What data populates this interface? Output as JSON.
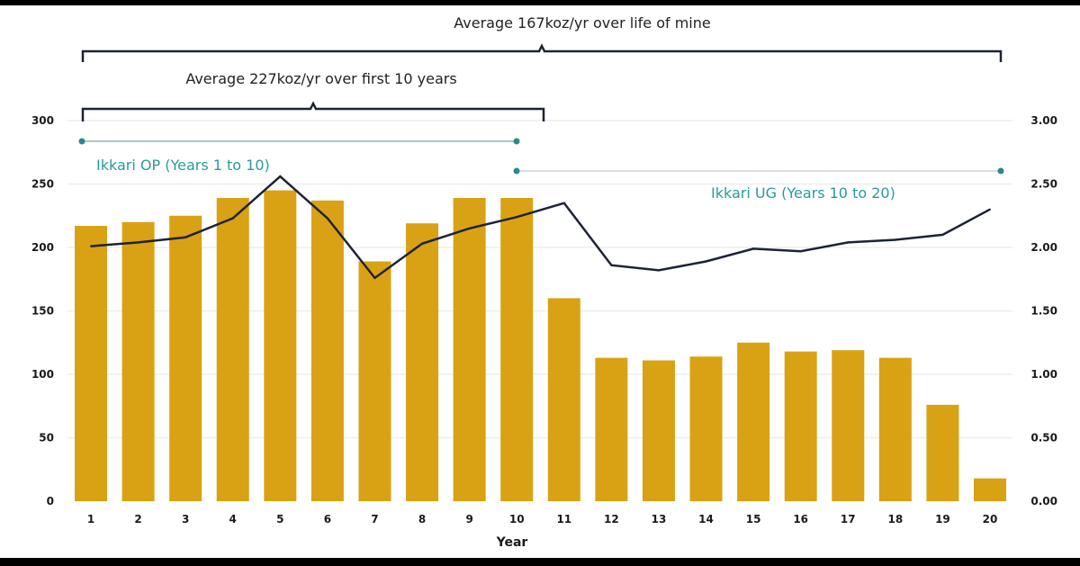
{
  "chart_data": {
    "type": "bar+line",
    "xlabel": "Year",
    "categories": [
      "1",
      "2",
      "3",
      "4",
      "5",
      "6",
      "7",
      "8",
      "9",
      "10",
      "11",
      "12",
      "13",
      "14",
      "15",
      "16",
      "17",
      "18",
      "19",
      "20"
    ],
    "left_axis": {
      "ylim": [
        0,
        300
      ],
      "ticks": [
        "0",
        "50",
        "100",
        "150",
        "200",
        "250",
        "300"
      ]
    },
    "right_axis": {
      "ylim": [
        0,
        3.0
      ],
      "ticks": [
        "0.00",
        "0.50",
        "1.00",
        "1.50",
        "2.00",
        "2.50",
        "3.00"
      ]
    },
    "series": [
      {
        "type": "bar",
        "axis": "left",
        "color": "#D9A214",
        "values": [
          217,
          220,
          225,
          239,
          245,
          237,
          189,
          219,
          239,
          239,
          160,
          113,
          111,
          114,
          125,
          118,
          119,
          113,
          76,
          18
        ]
      },
      {
        "type": "line",
        "axis": "right",
        "color": "#1c2333",
        "values": [
          2.01,
          2.04,
          2.08,
          2.23,
          2.56,
          2.23,
          1.76,
          2.03,
          2.15,
          2.24,
          2.35,
          1.86,
          1.82,
          1.89,
          1.99,
          1.97,
          2.04,
          2.06,
          2.1,
          2.3
        ]
      }
    ],
    "grid": true,
    "annotations": {
      "life_of_mine": "Average 167koz/yr over life of mine",
      "first_10": "Average 227koz/yr over first 10 years",
      "op": "Ikkari OP (Years 1 to 10)",
      "ug": "Ikkari UG (Years  10 to 20)"
    },
    "accent_color": "#2a9a9a"
  }
}
